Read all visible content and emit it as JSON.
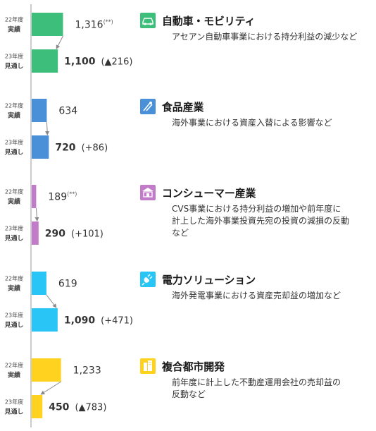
{
  "chart_data": {
    "type": "bar",
    "orientation": "horizontal",
    "row_labels": {
      "prev": "22年度\n実績",
      "curr": "23年度\n見通し"
    },
    "segments": [
      {
        "name": "自動車・モビリティ",
        "color": "#3DBE7A",
        "icon": "car-icon",
        "prev": 1316,
        "prev_label": "1,316",
        "prev_note": "(**)",
        "curr": 1100,
        "curr_label": "1,100",
        "change": "(▲216)",
        "description": "アセアン自動車事業における持分利益の減少など"
      },
      {
        "name": "食品産業",
        "color": "#4A90D9",
        "icon": "food-icon",
        "prev": 634,
        "prev_label": "634",
        "prev_note": "",
        "curr": 720,
        "curr_label": "720",
        "change": "(+86)",
        "description": "海外事業における資産入替による影響など"
      },
      {
        "name": "コンシューマー産業",
        "color": "#C27BC9",
        "icon": "store-icon",
        "prev": 189,
        "prev_label": "189",
        "prev_note": "(**)",
        "curr": 290,
        "curr_label": "290",
        "change": "(+101)",
        "description": "CVS事業における持分利益の増加や前年度に\n計上した海外事業投資先宛の投資の減損の反動\nなど"
      },
      {
        "name": "電力ソリューション",
        "color": "#29C5F6",
        "icon": "plug-icon",
        "prev": 619,
        "prev_label": "619",
        "prev_note": "",
        "curr": 1090,
        "curr_label": "1,090",
        "change": "(+471)",
        "description": "海外発電事業における資産売却益の増加など"
      },
      {
        "name": "複合都市開発",
        "color": "#FFD21F",
        "icon": "building-icon",
        "prev": 1233,
        "prev_label": "1,233",
        "prev_note": "",
        "curr": 450,
        "curr_label": "450",
        "change": "(▲783)",
        "description": "前年度に計上した不動産運用会社の売却益の\n反動など"
      }
    ]
  }
}
